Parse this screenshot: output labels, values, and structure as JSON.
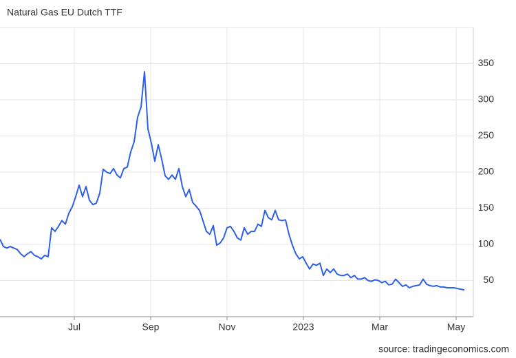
{
  "chart_data": {
    "type": "line",
    "title": "Natural Gas EU Dutch TTF",
    "source": "source: tradingeconomics.com",
    "series": [
      {
        "name": "Natural Gas EU Dutch TTF",
        "color": "#2f5fe6",
        "values": [
          107,
          97,
          95,
          97,
          95,
          93,
          87,
          83,
          87,
          90,
          85,
          83,
          80,
          85,
          83,
          123,
          118,
          125,
          133,
          128,
          143,
          152,
          166,
          182,
          166,
          180,
          161,
          155,
          157,
          171,
          204,
          200,
          198,
          205,
          196,
          192,
          205,
          207,
          228,
          242,
          276,
          290,
          339,
          260,
          240,
          215,
          238,
          218,
          195,
          190,
          196,
          190,
          205,
          180,
          166,
          176,
          158,
          153,
          147,
          133,
          118,
          114,
          126,
          99,
          102,
          109,
          123,
          125,
          118,
          109,
          106,
          123,
          114,
          118,
          118,
          128,
          125,
          147,
          137,
          134,
          147,
          134,
          133,
          134,
          114,
          99,
          87,
          80,
          83,
          74,
          66,
          73,
          71,
          74,
          57,
          66,
          61,
          66,
          59,
          57,
          57,
          59,
          54,
          57,
          52,
          52,
          54,
          50,
          49,
          51,
          50,
          47,
          49,
          44,
          45,
          52,
          47,
          42,
          44,
          40,
          42,
          43,
          44,
          52,
          45,
          43,
          42,
          43,
          41,
          41,
          40,
          40,
          40,
          39,
          38,
          37
        ]
      }
    ],
    "ylim": [
      0,
      400
    ],
    "yticks": [
      50,
      100,
      150,
      200,
      250,
      300,
      350
    ],
    "xticks": [
      {
        "value": "2022-07",
        "label": "Jul"
      },
      {
        "value": "2022-09",
        "label": "Sep"
      },
      {
        "value": "2022-11",
        "label": "Nov"
      },
      {
        "value": "2023-01",
        "label": "2023"
      },
      {
        "value": "2023-03",
        "label": "Mar"
      },
      {
        "value": "2023-05",
        "label": "May"
      }
    ],
    "grid": true
  }
}
